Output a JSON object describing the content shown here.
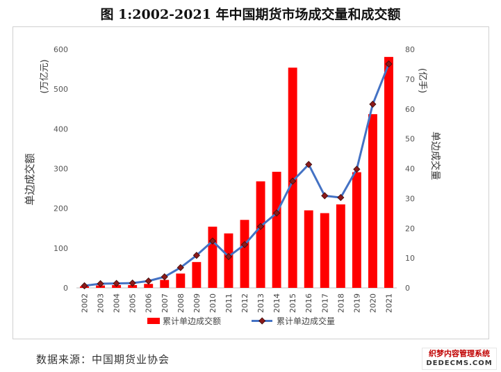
{
  "title": "图 1:2002-2021 年中国期货市场成交量和成交额",
  "source": "数据来源：中国期货业协会",
  "watermark": {
    "cn": "织梦内容管理系统",
    "en": "DEDECMS.COM"
  },
  "chart_data": {
    "type": "bar+line",
    "categories": [
      "2002",
      "2003",
      "2004",
      "2005",
      "2006",
      "2007",
      "2008",
      "2009",
      "2010",
      "2011",
      "2012",
      "2013",
      "2014",
      "2015",
      "2016",
      "2017",
      "2018",
      "2019",
      "2020",
      "2021"
    ],
    "series": [
      {
        "name": "累计单边成交额",
        "type": "bar",
        "axis": "left",
        "color": "#ff0000",
        "values": [
          4,
          6,
          7,
          7,
          10,
          20,
          36,
          65,
          154,
          137,
          171,
          268,
          292,
          554,
          195,
          188,
          210,
          291,
          437,
          581
        ]
      },
      {
        "name": "累计单边成交量",
        "type": "line",
        "axis": "right",
        "color": "#4472c4",
        "values": [
          0.7,
          1.4,
          1.5,
          1.6,
          2.3,
          3.7,
          6.8,
          10.9,
          15.7,
          10.5,
          14.5,
          20.6,
          25.1,
          35.8,
          41.4,
          30.9,
          30.3,
          39.8,
          61.6,
          75.1
        ]
      }
    ],
    "left_axis": {
      "label": "单边成交额",
      "unit": "(万亿元)",
      "min": 0,
      "max": 600,
      "ticks": [
        "0",
        "100",
        "200",
        "300",
        "400",
        "500",
        "600"
      ]
    },
    "right_axis": {
      "label": "单边成交量",
      "unit": "(亿手)",
      "min": 0,
      "max": 80,
      "ticks": [
        "0",
        "10",
        "20",
        "30",
        "40",
        "50",
        "60",
        "70",
        "80"
      ]
    },
    "grid": false,
    "legend_position": "bottom"
  }
}
